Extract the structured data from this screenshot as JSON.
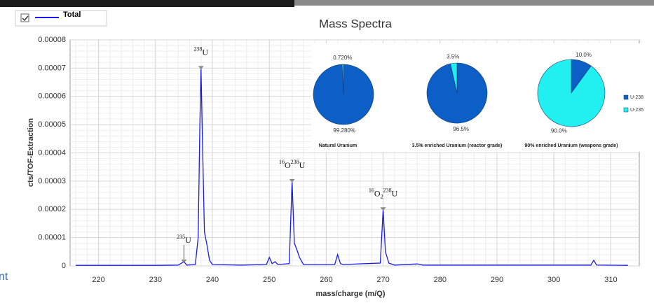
{
  "chart_data": [
    {
      "type": "line",
      "ylabel": "cts/TOF-Extraction",
      "xlabel": "mass/charge (m/Q)",
      "xlim": [
        215,
        315
      ],
      "ylim": [
        0,
        8e-05
      ],
      "xticks": [
        220,
        230,
        240,
        250,
        260,
        270,
        280,
        290,
        300,
        310
      ],
      "yticks": [
        0,
        1e-05,
        2e-05,
        3e-05,
        4e-05,
        5e-05,
        6e-05,
        7e-05,
        8e-05
      ],
      "grid": true,
      "series": [
        {
          "name": "Total",
          "color": "#1a1ae6",
          "x": [
            216,
            220,
            225,
            230,
            234,
            235,
            235.5,
            237,
            237.5,
            237.8,
            238,
            238.3,
            238.6,
            239,
            239.5,
            240,
            245,
            249.5,
            250,
            250.5,
            251,
            251.5,
            253.5,
            254,
            254.4,
            254.8,
            255.3,
            256,
            261.5,
            262,
            262.5,
            263,
            269.5,
            270,
            270.4,
            271,
            272,
            276,
            277,
            306.5,
            307,
            307.5,
            313
          ],
          "values": [
            2e-07,
            2e-07,
            2e-07,
            2e-07,
            3e-07,
            1.5e-06,
            3e-07,
            5e-07,
            1e-05,
            5e-05,
            7e-05,
            4e-05,
            1.2e-05,
            8e-06,
            2e-06,
            5e-07,
            3e-07,
            5e-07,
            3e-06,
            8e-07,
            1.5e-06,
            5e-07,
            8e-07,
            3e-05,
            8e-06,
            6e-06,
            3e-06,
            5e-07,
            5e-07,
            4e-06,
            8e-07,
            5e-07,
            1e-06,
            2e-05,
            5e-06,
            1e-06,
            3e-07,
            7e-07,
            3e-07,
            3e-07,
            2e-06,
            3e-07,
            2e-07
          ]
        }
      ],
      "annotations": [
        {
          "x": 235,
          "y": 1.5e-06,
          "parts": [
            {
              "text": "235",
              "style": "sup"
            },
            {
              "text": "U",
              "style": "base"
            }
          ]
        },
        {
          "x": 238,
          "y": 7e-05,
          "parts": [
            {
              "text": "238",
              "style": "sup"
            },
            {
              "text": "U",
              "style": "base"
            }
          ]
        },
        {
          "x": 254,
          "y": 3e-05,
          "parts": [
            {
              "text": "16",
              "style": "sup"
            },
            {
              "text": "O",
              "style": "base"
            },
            {
              "text": "238",
              "style": "sup"
            },
            {
              "text": "U",
              "style": "base"
            }
          ]
        },
        {
          "x": 270,
          "y": 2e-05,
          "parts": [
            {
              "text": "16",
              "style": "sup"
            },
            {
              "text": "O",
              "style": "base"
            },
            {
              "text": "2",
              "style": "sub"
            },
            {
              "text": "238",
              "style": "sup"
            },
            {
              "text": "U",
              "style": "base"
            }
          ]
        }
      ]
    },
    {
      "type": "pie",
      "title": "Mass Spectra",
      "categories": [
        "U-238",
        "U-235"
      ],
      "colors": [
        "#0b5fc6",
        "#22f0f0"
      ],
      "pies": [
        {
          "title": "Natural Uranium",
          "values": [
            99.28,
            0.72
          ],
          "value_labels": [
            "99.280%",
            "0.720%"
          ]
        },
        {
          "title": "3.5% enriched Uranium (reactor grade)",
          "values": [
            96.5,
            3.5
          ],
          "value_labels": [
            "96.5%",
            "3.5%"
          ]
        },
        {
          "title": "90% enriched Uranium (weapons grade)",
          "values": [
            10,
            90
          ],
          "value_labels": [
            "10.0%",
            "90.0%"
          ]
        }
      ]
    }
  ],
  "side_text": "nt"
}
